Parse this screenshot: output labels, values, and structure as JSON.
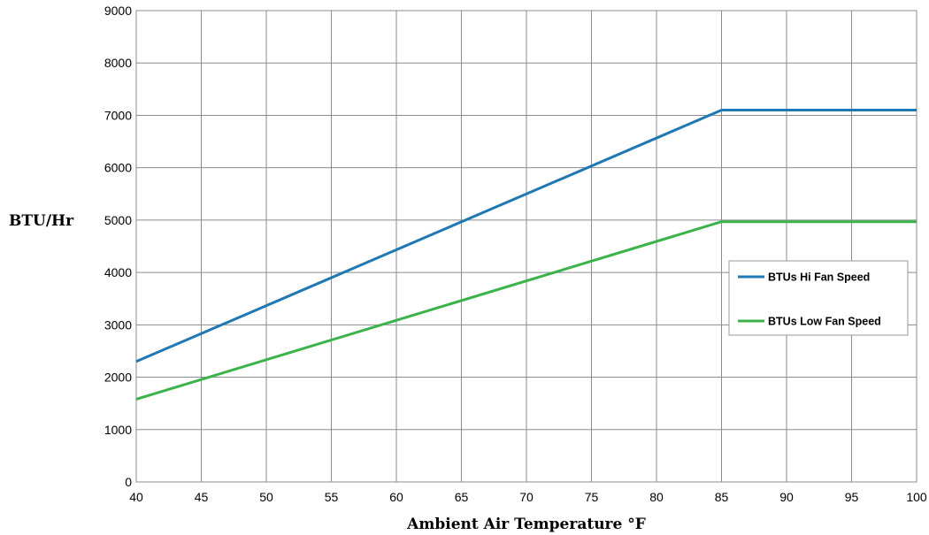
{
  "chart_data": {
    "type": "line",
    "title": "",
    "xlabel": "Ambient Air Temperature °F",
    "ylabel": "BTU/Hr",
    "xlim": [
      40,
      100
    ],
    "ylim": [
      0,
      9000
    ],
    "xticks": [
      40,
      45,
      50,
      55,
      60,
      65,
      70,
      75,
      80,
      85,
      90,
      95,
      100
    ],
    "yticks": [
      0,
      1000,
      2000,
      3000,
      4000,
      5000,
      6000,
      7000,
      8000,
      9000
    ],
    "grid": true,
    "legend_position": "right",
    "series": [
      {
        "name": "BTUs Hi Fan Speed",
        "color": "#1f77b4",
        "x": [
          40,
          85,
          100
        ],
        "y": [
          2300,
          7100,
          7100
        ]
      },
      {
        "name": "BTUs Low Fan Speed",
        "color": "#3cb34a",
        "x": [
          40,
          85,
          100
        ],
        "y": [
          1580,
          4970,
          4970
        ]
      }
    ]
  }
}
